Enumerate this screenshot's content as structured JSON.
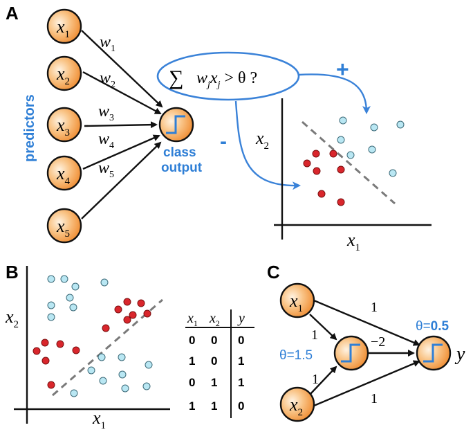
{
  "panels": {
    "a": "A",
    "b": "B",
    "c": "C"
  },
  "a": {
    "inputs": [
      {
        "base": "x",
        "sub": "1"
      },
      {
        "base": "x",
        "sub": "2"
      },
      {
        "base": "x",
        "sub": "3"
      },
      {
        "base": "x",
        "sub": "4"
      },
      {
        "base": "x",
        "sub": "5"
      }
    ],
    "weights": [
      {
        "base": "w",
        "sub": "1"
      },
      {
        "base": "w",
        "sub": "2"
      },
      {
        "base": "w",
        "sub": "3"
      },
      {
        "base": "w",
        "sub": "4"
      },
      {
        "base": "w",
        "sub": "5"
      }
    ],
    "predictors_label": "predictors",
    "output_label_1": "class",
    "output_label_2": "output",
    "rule": {
      "sum": "∑",
      "w": "w",
      "wsub": "j",
      "x": "x",
      "xsub": "j",
      "rest": " > θ ?"
    },
    "plus": "+",
    "minus": "-",
    "xaxis": {
      "base": "x",
      "sub": "1"
    },
    "yaxis": {
      "base": "x",
      "sub": "2"
    },
    "colors": {
      "positive": "#b9e7f3",
      "negative": "#d9262c",
      "accent": "#2f7fd6"
    }
  },
  "b": {
    "xaxis": {
      "base": "x",
      "sub": "1"
    },
    "yaxis": {
      "base": "x",
      "sub": "2"
    },
    "table": {
      "headers": [
        {
          "base": "x",
          "sub": "1"
        },
        {
          "base": "x",
          "sub": "2"
        },
        {
          "base": "y",
          "sub": ""
        }
      ],
      "rows": [
        [
          "0",
          "0",
          "0"
        ],
        [
          "1",
          "0",
          "1"
        ],
        [
          "0",
          "1",
          "1"
        ],
        [
          "1",
          "1",
          "0"
        ]
      ]
    }
  },
  "c": {
    "inputs": [
      {
        "base": "x",
        "sub": "1"
      },
      {
        "base": "x",
        "sub": "2"
      }
    ],
    "w_top_out": "1",
    "w_top_hidden": "1",
    "w_bottom_hidden": "1",
    "w_bottom_out": "1",
    "w_hidden_out": "−2",
    "theta_hidden": "θ=1.5",
    "theta_out_label": "θ=",
    "theta_out_value": "0.5",
    "output": "y"
  }
}
